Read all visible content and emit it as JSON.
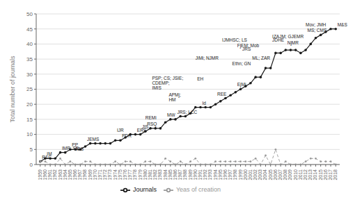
{
  "chart_data": {
    "type": "line",
    "x": [
      1959,
      1960,
      1961,
      1962,
      1963,
      1964,
      1965,
      1966,
      1967,
      1968,
      1969,
      1970,
      1971,
      1972,
      1973,
      1974,
      1975,
      1976,
      1977,
      1978,
      1979,
      1980,
      1981,
      1982,
      1983,
      1984,
      1985,
      1986,
      1987,
      1988,
      1989,
      1990,
      1991,
      1992,
      1993,
      1994,
      1995,
      1996,
      1997,
      1998,
      1999,
      2000,
      2001,
      2002,
      2003,
      2004,
      2005,
      2006,
      2007,
      2008,
      2009,
      2010,
      2011,
      2012,
      2013,
      2014,
      2015,
      2016,
      2017,
      2018
    ],
    "series": [
      {
        "name": "Journals",
        "color": "#1a1a1a",
        "marker": "o",
        "line_style": "solid",
        "values": [
          1,
          2,
          2,
          2,
          4,
          4,
          5,
          5,
          5,
          6,
          7,
          7,
          7,
          7,
          7,
          8,
          8,
          9,
          10,
          10,
          10,
          11,
          12,
          12,
          12,
          14,
          15,
          15,
          16,
          16,
          17,
          19,
          19,
          19,
          19,
          20,
          21,
          22,
          23,
          24,
          25,
          26,
          27,
          29,
          29,
          32,
          32,
          37,
          37,
          38,
          38,
          38,
          37,
          38,
          40,
          42,
          43,
          44,
          45,
          45
        ]
      },
      {
        "name": "Yeas of creation",
        "color": "#999999",
        "marker": "o",
        "line_style": "dashed",
        "values": [
          1,
          1,
          0,
          0,
          2,
          0,
          1,
          0,
          0,
          1,
          1,
          0,
          0,
          0,
          0,
          1,
          0,
          1,
          1,
          0,
          0,
          1,
          1,
          0,
          0,
          2,
          1,
          0,
          1,
          0,
          1,
          2,
          0,
          0,
          0,
          1,
          1,
          1,
          1,
          1,
          1,
          1,
          1,
          2,
          0,
          3,
          0,
          5,
          0,
          1,
          0,
          0,
          0,
          1,
          2,
          2,
          1,
          1,
          1,
          0
        ]
      }
    ],
    "annotations": [
      {
        "x": 1959,
        "y": 1,
        "text": "R&C"
      },
      {
        "x": 1960,
        "y": 2,
        "text": "IM"
      },
      {
        "x": 1963,
        "y": 4,
        "text": "IMR; SE"
      },
      {
        "x": 1965,
        "y": 5,
        "text": "PP"
      },
      {
        "x": 1968,
        "y": 7,
        "text": "JEMS"
      },
      {
        "x": 1969,
        "y": 7,
        "text": "JBS"
      },
      {
        "x": 1975,
        "y": 8,
        "text": "PDR"
      },
      {
        "x": 1977,
        "y": 10,
        "text": "IJR"
      },
      {
        "x": 1978,
        "y": 10,
        "text": "ERS"
      },
      {
        "x": 1979,
        "y": 11,
        "text": "JIS"
      },
      {
        "x": 1980,
        "y": 12,
        "text": "RSQ"
      },
      {
        "x": 1983,
        "y": 14,
        "text": "REMi"
      },
      {
        "x": 1984,
        "y": 15,
        "text": "MW"
      },
      {
        "x": 1986,
        "y": 16,
        "text": "JRS; LCC"
      },
      {
        "x": 1988,
        "y": 24,
        "text": "PSP; CS; JSIE;\nCDEMP;\nIMIS"
      },
      {
        "x": 1989,
        "y": 20,
        "text": "APMj;\nHM"
      },
      {
        "x": 1990,
        "y": 27,
        "text": "EH"
      },
      {
        "x": 1991,
        "y": 19,
        "text": "Id"
      },
      {
        "x": 1994,
        "y": 22,
        "text": "REE"
      },
      {
        "x": 1996,
        "y": 34,
        "text": "JiMi; NJMR"
      },
      {
        "x": 1997,
        "y": 32,
        "text": "Ethn; GN"
      },
      {
        "x": 1998,
        "y": 29,
        "text": "EjMi"
      },
      {
        "x": 1999,
        "y": 37,
        "text": "JRS"
      },
      {
        "x": 2001,
        "y": 34,
        "text": "ML; ZAR"
      },
      {
        "x": 2003,
        "y": 40,
        "text": "IJMHSC; LS"
      },
      {
        "x": 2004,
        "y": 38,
        "text": "FjEM; Mob"
      },
      {
        "x": 2005,
        "y": 40,
        "text": "JDHE"
      },
      {
        "x": 2006,
        "y": 41,
        "text": "IZAJM; GJEMR"
      },
      {
        "x": 2008,
        "y": 39,
        "text": "NjMR"
      },
      {
        "x": 2012,
        "y": 43,
        "text": "MS; CMS"
      },
      {
        "x": 2013,
        "y": 45,
        "text": "Mov; JMH"
      },
      {
        "x": 2018,
        "y": 45,
        "text": "M&S"
      }
    ],
    "xlim": [
      1958.2,
      2018.8
    ],
    "xticks": [
      1959,
      1960,
      1961,
      1962,
      1963,
      1964,
      1965,
      1966,
      1967,
      1968,
      1969,
      1970,
      1971,
      1972,
      1973,
      1974,
      1975,
      1976,
      1977,
      1978,
      1979,
      1980,
      1981,
      1982,
      1983,
      1984,
      1985,
      1986,
      1987,
      1988,
      1989,
      1990,
      1991,
      1992,
      1993,
      1994,
      1995,
      1996,
      1997,
      1998,
      1999,
      2000,
      2001,
      2002,
      2003,
      2004,
      2005,
      2006,
      2007,
      2008,
      2009,
      2010,
      2011,
      2012,
      2013,
      2014,
      2015,
      2016,
      2017,
      2018
    ],
    "ylim": [
      0,
      50
    ],
    "yticks": [
      0,
      5,
      10,
      15,
      20,
      25,
      30,
      35,
      40,
      45,
      50
    ],
    "ylabel": "Total number of journals",
    "grid": true,
    "legend": "bottom"
  }
}
